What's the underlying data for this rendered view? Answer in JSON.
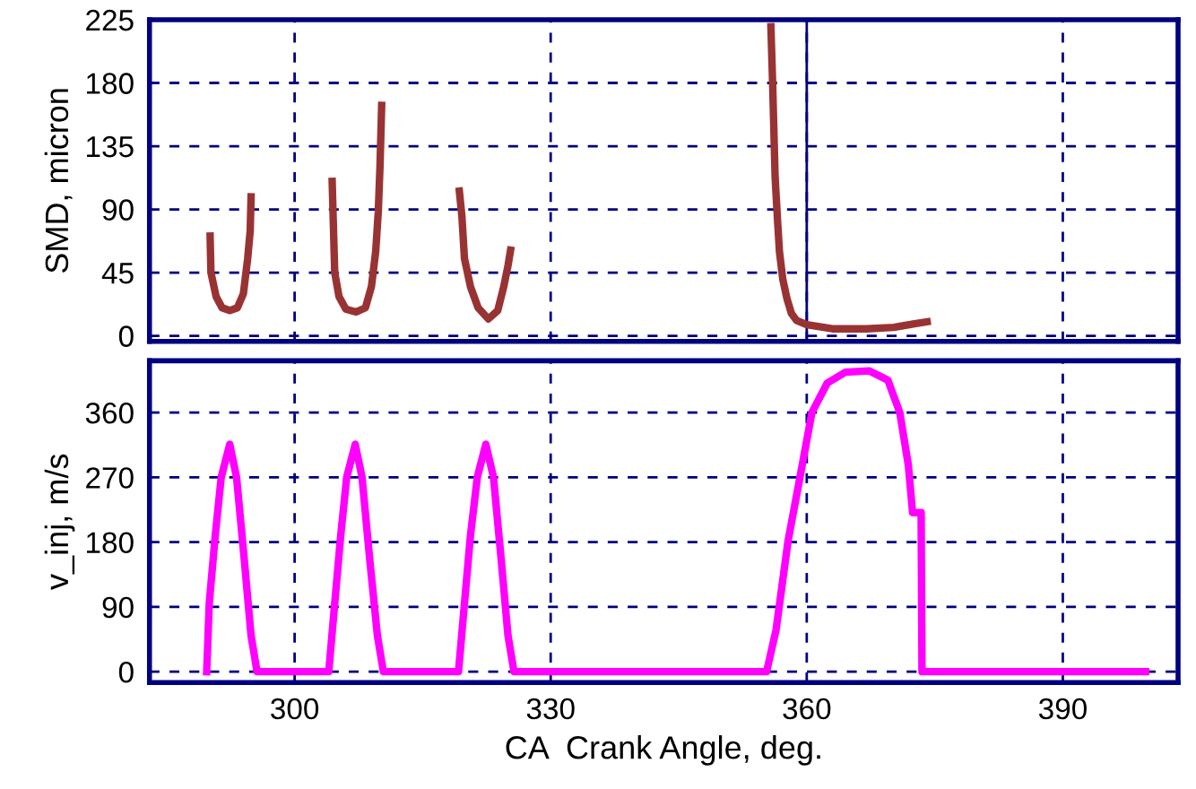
{
  "chart_data": [
    {
      "type": "line",
      "ylabel": "SMD, micron",
      "xlim": [
        283,
        403.5
      ],
      "xticks": [
        300,
        330,
        360,
        390
      ],
      "ylim": [
        -4,
        225
      ],
      "yticks": [
        0,
        45,
        90,
        135,
        180,
        225
      ],
      "grid": true,
      "tick_labels": "y",
      "marker": "none",
      "line_style": "solid",
      "ref_lines": [
        {
          "axis": "x",
          "value": 360,
          "color": "#000080",
          "line_style": "solid"
        }
      ],
      "series": [
        {
          "color": "#993333",
          "x": [
            290.1,
            290.2,
            290.8,
            291.5,
            292.4,
            293.3,
            294,
            294.5,
            294.8,
            294.9,
            295,
            304.4,
            304.5,
            304.7,
            305.2,
            306,
            307.2,
            308.3,
            309,
            309.5,
            309.8,
            310,
            310.2,
            310.3,
            319.3,
            319.6,
            319.9,
            320.6,
            321.5,
            322.7,
            323.8,
            324.5,
            325.0,
            325.3,
            325.4,
            355.8,
            356.0,
            356.3,
            356.6,
            356.8,
            357.2,
            357.7,
            358.2,
            358.8,
            360,
            361,
            363,
            367,
            370.2,
            372,
            374.1
          ],
          "values": [
            71,
            45,
            28,
            20,
            18,
            20,
            30,
            55,
            75,
            99,
            null,
            110,
            88,
            45,
            28,
            19,
            17,
            20,
            35,
            60,
            88,
            120,
            164,
            null,
            103,
            85,
            55,
            35,
            20,
            12,
            18,
            35,
            50,
            61,
            null,
            220,
            180,
            112,
            80,
            60,
            40,
            26,
            16,
            11,
            8,
            7,
            5,
            5,
            6,
            8,
            10
          ]
        }
      ]
    },
    {
      "type": "line",
      "xlabel": "CA  Crank Angle, deg.",
      "ylabel": "v_inj, m/s",
      "xlim": [
        283,
        403.5
      ],
      "xticks": [
        300,
        330,
        360,
        390
      ],
      "ylim": [
        -15,
        432
      ],
      "yticks": [
        0,
        90,
        180,
        270,
        360
      ],
      "grid": true,
      "marker": "none",
      "line_style": "solid",
      "series": [
        {
          "color": "#ff00ff",
          "x": [
            289.7,
            290.0,
            290.7,
            291.4,
            292.4,
            293.2,
            294.1,
            294.9,
            295.6,
            304.0,
            304.7,
            305.4,
            306.1,
            307.1,
            307.9,
            308.8,
            309.7,
            310.4,
            319.2,
            319.9,
            320.6,
            321.4,
            322.4,
            323.3,
            324.2,
            325.0,
            325.7,
            355.3,
            356.4,
            357.8,
            359.2,
            360.6,
            362.4,
            364.5,
            367.3,
            369.5,
            370.9,
            371.9,
            372.4,
            373.4,
            373.5,
            399.7
          ],
          "values": [
            0,
            95,
            189,
            270,
            316,
            270,
            156,
            50,
            0,
            0,
            95,
            189,
            270,
            316,
            270,
            156,
            50,
            0,
            0,
            95,
            189,
            270,
            316,
            270,
            156,
            50,
            0,
            0,
            58,
            181,
            270,
            360,
            401,
            416,
            418,
            405,
            360,
            287,
            221,
            221,
            0,
            0
          ]
        }
      ]
    }
  ]
}
